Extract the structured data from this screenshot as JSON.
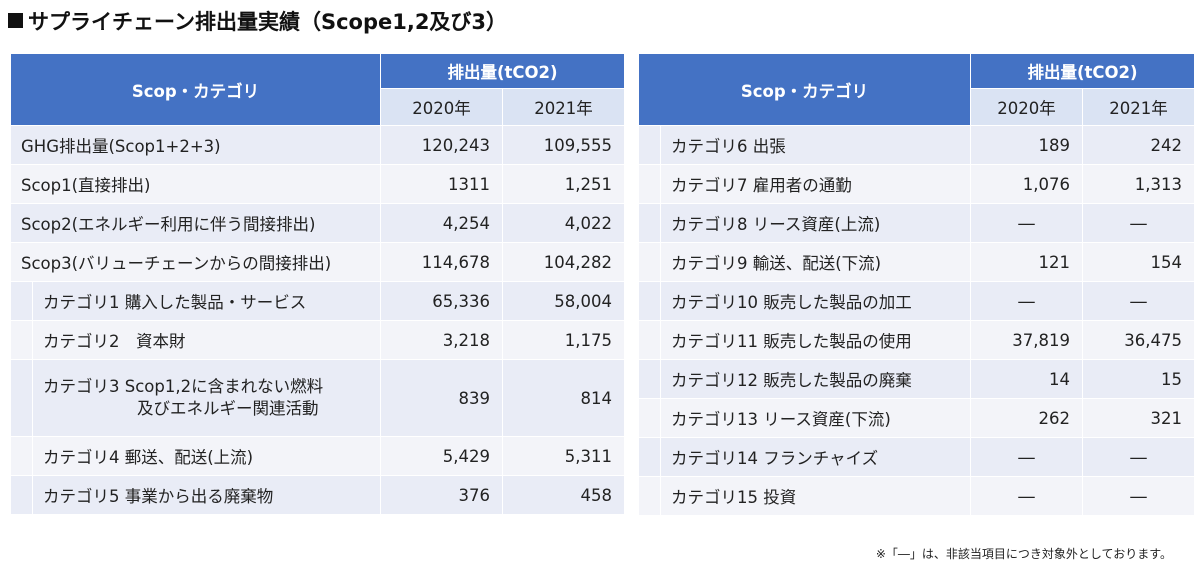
{
  "title": "サプライチェーン排出量実績（Scope1,2及び3）",
  "header": {
    "category": "Scop・カテゴリ",
    "emissions": "排出量(tCO2)",
    "y2020": "2020年",
    "y2021": "2021年"
  },
  "left_rows": [
    {
      "label": "GHG排出量(Scop1+2+3)",
      "v2020": "120,243",
      "v2021": "109,555"
    },
    {
      "label": "Scop1(直接排出)",
      "v2020": "1311",
      "v2021": "1,251"
    },
    {
      "label": "Scop2(エネルギー利用に伴う間接排出)",
      "v2020": "4,254",
      "v2021": "4,022"
    },
    {
      "label": "Scop3(バリューチェーンからの間接排出)",
      "v2020": "114,678",
      "v2021": "104,282"
    },
    {
      "label": "カテゴリ1  購入した製品・サービス",
      "v2020": "65,336",
      "v2021": "58,004"
    },
    {
      "label": "カテゴリ2　資本財",
      "v2020": "3,218",
      "v2021": "1,175"
    },
    {
      "label_line1": "カテゴリ3  Scop1,2に含まれない燃料",
      "label_line2": "及びエネルギー関連活動",
      "v2020": "839",
      "v2021": "814"
    },
    {
      "label": "カテゴリ4  郵送、配送(上流)",
      "v2020": "5,429",
      "v2021": "5,311"
    },
    {
      "label": "カテゴリ5  事業から出る廃棄物",
      "v2020": "376",
      "v2021": "458"
    }
  ],
  "right_rows": [
    {
      "label": "カテゴリ6  出張",
      "v2020": "189",
      "v2021": "242"
    },
    {
      "label": "カテゴリ7  雇用者の通勤",
      "v2020": "1,076",
      "v2021": "1,313"
    },
    {
      "label": "カテゴリ8  リース資産(上流)",
      "v2020": "―",
      "v2021": "―"
    },
    {
      "label": "カテゴリ9  輸送、配送(下流)",
      "v2020": "121",
      "v2021": "154"
    },
    {
      "label": "カテゴリ10  販売した製品の加工",
      "v2020": "―",
      "v2021": "―"
    },
    {
      "label": "カテゴリ11  販売した製品の使用",
      "v2020": "37,819",
      "v2021": "36,475"
    },
    {
      "label": "カテゴリ12  販売した製品の廃棄",
      "v2020": "14",
      "v2021": "15"
    },
    {
      "label": "カテゴリ13  リース資産(下流)",
      "v2020": "262",
      "v2021": "321"
    },
    {
      "label": "カテゴリ14  フランチャイズ",
      "v2020": "―",
      "v2021": "―"
    },
    {
      "label": "カテゴリ15  投資",
      "v2020": "―",
      "v2021": "―"
    }
  ],
  "note": "※「―」は、非該当項目につき対象外としております。"
}
